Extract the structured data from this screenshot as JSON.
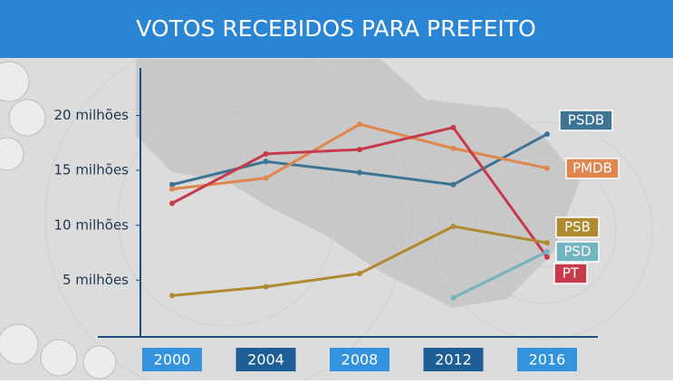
{
  "chart_data": {
    "type": "line",
    "title": "VOTOS RECEBIDOS PARA PREFEITO",
    "categories": [
      "2000",
      "2004",
      "2008",
      "2012",
      "2016"
    ],
    "series": [
      {
        "name": "PSDB",
        "color": "#3f7394",
        "values": [
          13.7,
          15.8,
          14.8,
          13.7,
          18.3
        ]
      },
      {
        "name": "PMDB",
        "color": "#e0864f",
        "values": [
          13.3,
          14.3,
          19.2,
          17.0,
          15.2
        ]
      },
      {
        "name": "PT",
        "color": "#c63a4c",
        "values": [
          12.0,
          16.5,
          16.9,
          18.9,
          7.1
        ]
      },
      {
        "name": "PSB",
        "color": "#b08a30",
        "values": [
          3.6,
          4.4,
          5.6,
          9.9,
          8.4
        ]
      },
      {
        "name": "PSD",
        "color": "#72b4bf",
        "values": [
          null,
          null,
          null,
          3.4,
          7.6
        ]
      }
    ],
    "ylim": [
      0,
      24
    ],
    "yticks": [
      {
        "value": 5,
        "label": "5 milhões"
      },
      {
        "value": 10,
        "label": "10 milhões"
      },
      {
        "value": 15,
        "label": "15 milhões"
      },
      {
        "value": 20,
        "label": "20 milhões"
      }
    ]
  }
}
